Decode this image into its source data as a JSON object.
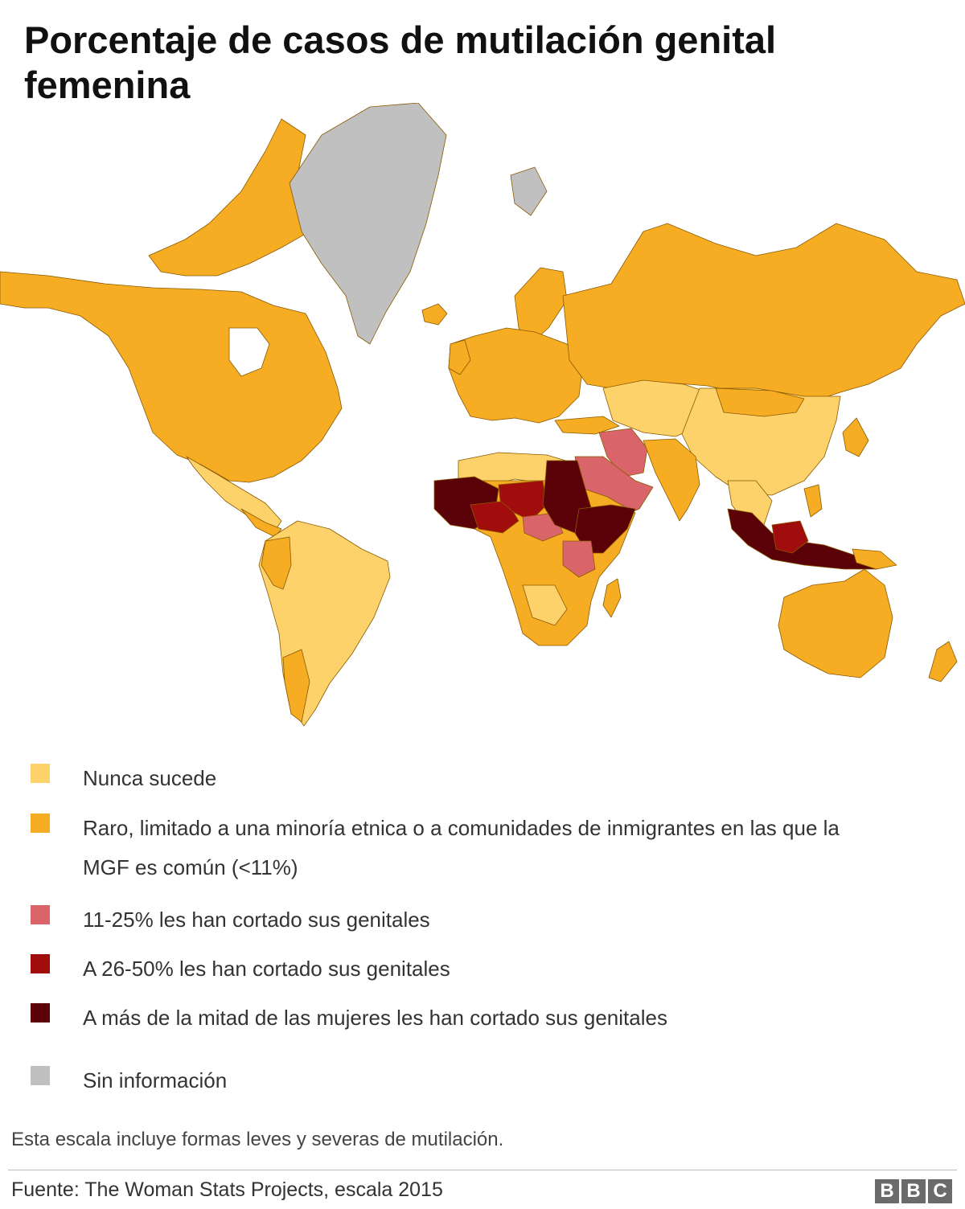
{
  "title": "Porcentaje de casos de mutilación genital femenina",
  "legend": [
    {
      "label": "Nunca sucede",
      "color": "#fdd26a"
    },
    {
      "label": "Raro, limitado a una minoría etnica o a comunidades de inmigrantes en las que la MGF es común (<11%)",
      "color": "#f6ac23"
    },
    {
      "label": "11-25%  les han cortado sus genitales",
      "color": "#d9656b"
    },
    {
      "label": "A 26-50% les han cortado sus genitales",
      "color": "#a10c0c"
    },
    {
      "label": "A más de la mitad de las mujeres les han cortado sus genitales",
      "color": "#5a0208"
    },
    {
      "label": "Sin información",
      "color": "#c0c0c0"
    }
  ],
  "note": "Esta escala incluye formas leves y severas de mutilación.",
  "source": "Fuente: The Woman Stats Projects, escala 2015",
  "logo": [
    "B",
    "B",
    "C"
  ]
}
